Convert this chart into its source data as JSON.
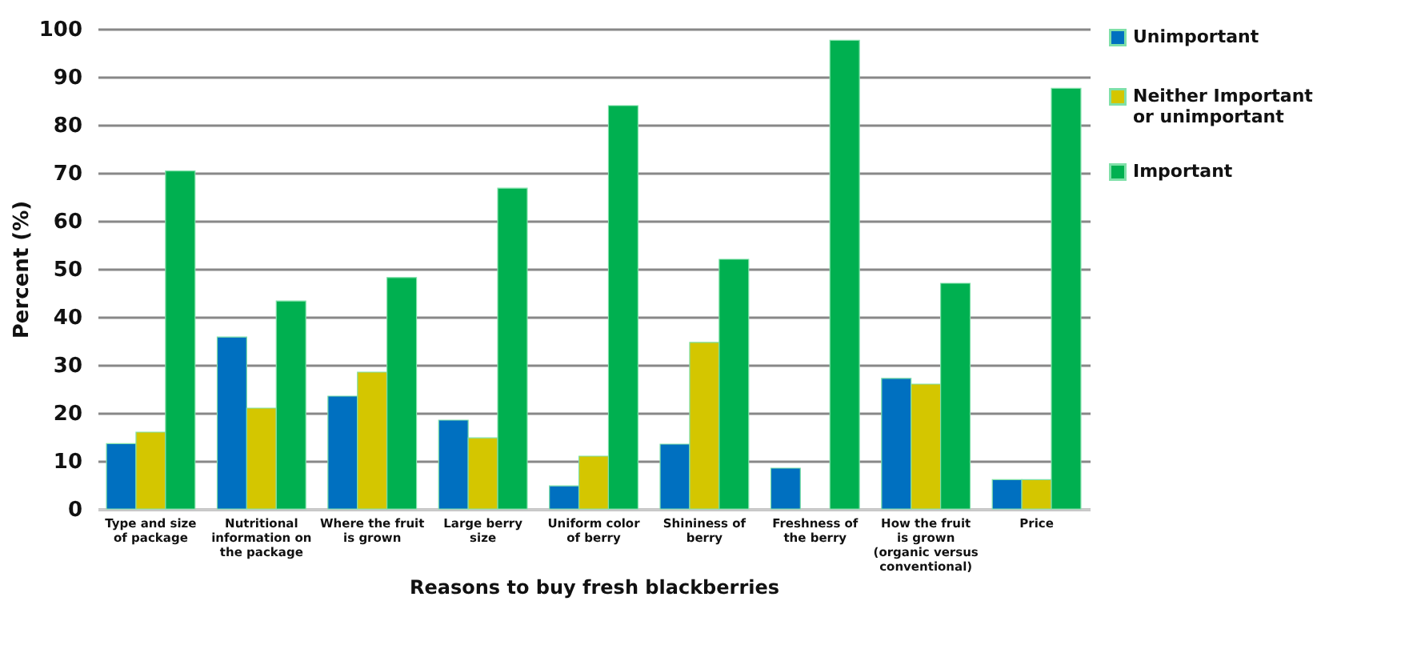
{
  "chart_data": {
    "type": "bar",
    "xlabel": "Reasons to buy fresh blackberries",
    "ylabel": "Percent (%)",
    "categories": [
      "Type and size of package",
      "Nutritional information on the package",
      "Where the fruit is grown",
      "Large berry size",
      "Uniform color of berry",
      "Shininess of berry",
      "Freshness of the berry",
      "How the fruit is grown (organic versus conventional)",
      "Price"
    ],
    "series": [
      {
        "name": "Unimportant",
        "color": "#0070c0",
        "values": [
          13.6,
          35.8,
          23.5,
          18.5,
          4.8,
          13.5,
          8.5,
          27.2,
          6.1
        ]
      },
      {
        "name": "Neither Important or unimportant",
        "color": "#d4c600",
        "values": [
          16,
          21,
          28.5,
          14.8,
          11,
          34.7,
          null,
          26,
          6.1
        ]
      },
      {
        "name": "Important",
        "color": "#00b050",
        "values": [
          70.4,
          43.3,
          48.2,
          66.8,
          84,
          52,
          97.6,
          47,
          87.6
        ]
      }
    ],
    "ylim": [
      0,
      100
    ],
    "yticks": [
      0,
      10,
      20,
      30,
      40,
      50,
      60,
      70,
      80,
      90,
      100
    ],
    "grid": "y",
    "legend": "right"
  }
}
